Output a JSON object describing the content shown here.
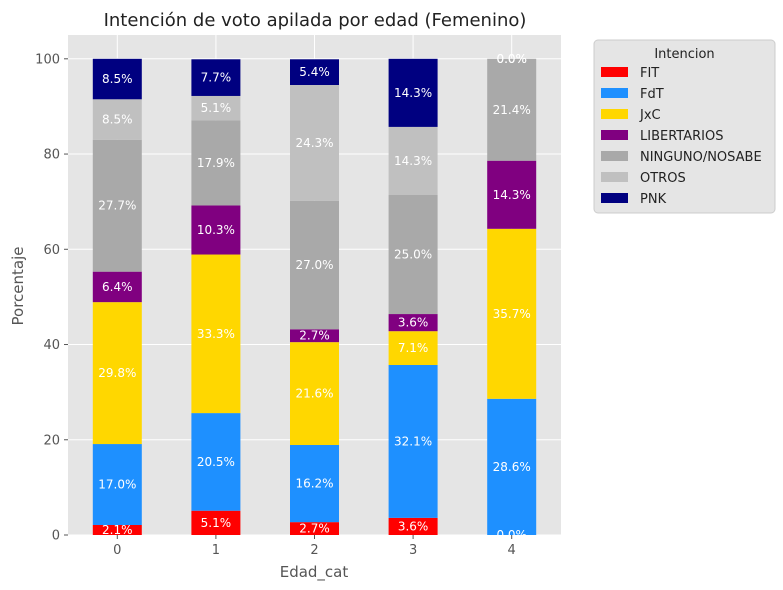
{
  "chart_data": {
    "type": "bar",
    "stacked": true,
    "title": "Intención de voto apilada por edad (Femenino)",
    "xlabel": "Edad_cat",
    "ylabel": "Porcentaje",
    "categories": [
      "0",
      "1",
      "2",
      "3",
      "4"
    ],
    "ylim": [
      0,
      105
    ],
    "yticks": [
      "0",
      "20",
      "40",
      "60",
      "80",
      "100"
    ],
    "grid": true,
    "legend_title": "Intencion",
    "legend_position": "outside-top-right",
    "series": [
      {
        "name": "FIT",
        "color": "#ff0000",
        "values": [
          2.1,
          5.1,
          2.7,
          3.6,
          0.0
        ],
        "labels": [
          "2.1%",
          "5.1%",
          "2.7%",
          "3.6%",
          ""
        ]
      },
      {
        "name": "FdT",
        "color": "#1e90ff",
        "values": [
          17.0,
          20.5,
          16.2,
          32.1,
          28.6
        ],
        "labels": [
          "17.0%",
          "20.5%",
          "16.2%",
          "32.1%",
          "28.6%"
        ]
      },
      {
        "name": "JxC",
        "color": "#ffd700",
        "values": [
          29.8,
          33.3,
          21.6,
          7.1,
          35.7
        ],
        "labels": [
          "29.8%",
          "33.3%",
          "21.6%",
          "7.1%",
          "35.7%"
        ]
      },
      {
        "name": "LIBERTARIOS",
        "color": "#800080",
        "values": [
          6.4,
          10.3,
          2.7,
          3.6,
          14.3
        ],
        "labels": [
          "6.4%",
          "10.3%",
          "2.7%",
          "3.6%",
          "14.3%"
        ]
      },
      {
        "name": "NINGUNO/NOSABE",
        "color": "#a9a9a9",
        "values": [
          27.7,
          17.9,
          27.0,
          25.0,
          21.4
        ],
        "labels": [
          "27.7%",
          "17.9%",
          "27.0%",
          "25.0%",
          "21.4%"
        ]
      },
      {
        "name": "OTROS",
        "color": "#c0c0c0",
        "values": [
          8.5,
          5.1,
          24.3,
          14.3,
          0.0
        ],
        "labels": [
          "8.5%",
          "5.1%",
          "24.3%",
          "14.3%",
          ""
        ]
      },
      {
        "name": "PNK",
        "color": "#000080",
        "values": [
          8.5,
          7.7,
          5.4,
          14.3,
          0.0
        ],
        "labels": [
          "8.5%",
          "7.7%",
          "5.4%",
          "14.3%",
          "0.0%"
        ]
      }
    ],
    "extra_labels": [
      {
        "category": "4",
        "text": "0.0%",
        "at_value": 0.0
      },
      {
        "category": "4",
        "text": "0.0%",
        "at_value": 100.0
      }
    ]
  }
}
